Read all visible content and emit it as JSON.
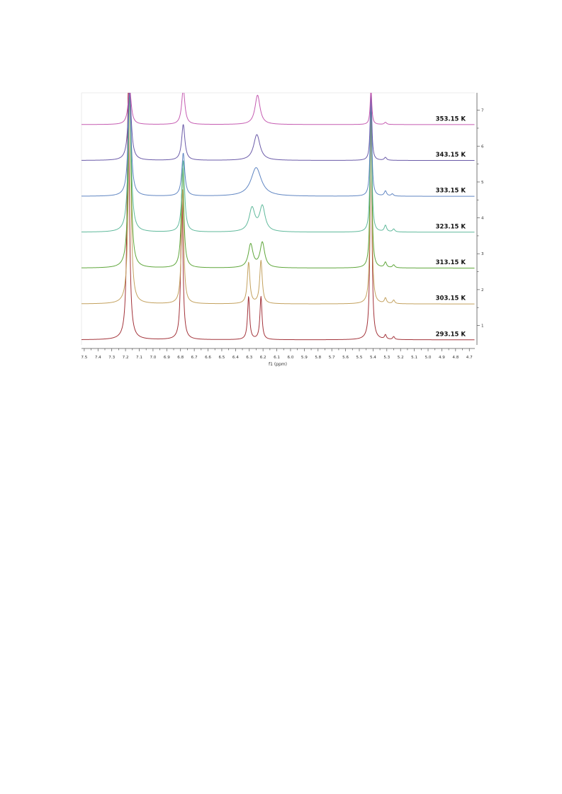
{
  "chart_data": {
    "type": "line",
    "title": "",
    "xlabel": "f1 (ppm)",
    "ylabel": "",
    "xlim": [
      7.52,
      4.66
    ],
    "x_reversed": true,
    "ylim": [
      0.4,
      7.5
    ],
    "x_ticks": [
      "7.5",
      "7.4",
      "7.3",
      "7.2",
      "7.1",
      "7.0",
      "6.9",
      "6.8",
      "6.7",
      "6.6",
      "6.5",
      "6.4",
      "6.3",
      "6.2",
      "6.1",
      "6.0",
      "5.9",
      "5.8",
      "5.7",
      "5.6",
      "5.5",
      "5.4",
      "5.3",
      "5.2",
      "5.1",
      "5.0",
      "4.9",
      "4.8",
      "4.7"
    ],
    "y_ticks": [
      "1",
      "2",
      "3",
      "4",
      "5",
      "6",
      "7"
    ],
    "grid": false,
    "series": [
      {
        "name": "293.15 K",
        "label": "293.15 K",
        "color": "#a3333a",
        "offset": 0.6,
        "peaks": [
          {
            "x": 7.18,
            "h": 7.0,
            "w": 0.01
          },
          {
            "x": 6.79,
            "h": 4.2,
            "w": 0.009
          },
          {
            "x": 6.305,
            "h": 1.2,
            "w": 0.009
          },
          {
            "x": 6.215,
            "h": 1.2,
            "w": 0.009
          },
          {
            "x": 5.415,
            "h": 7.0,
            "w": 0.007
          },
          {
            "x": 5.31,
            "h": 0.12,
            "w": 0.008
          },
          {
            "x": 5.25,
            "h": 0.08,
            "w": 0.008
          }
        ]
      },
      {
        "name": "303.15 K",
        "label": "303.15 K",
        "color": "#c3a15e",
        "offset": 1.6,
        "peaks": [
          {
            "x": 7.17,
            "h": 6.0,
            "w": 0.011
          },
          {
            "x": 6.785,
            "h": 3.2,
            "w": 0.01
          },
          {
            "x": 6.305,
            "h": 1.15,
            "w": 0.011
          },
          {
            "x": 6.215,
            "h": 1.2,
            "w": 0.011
          },
          {
            "x": 5.415,
            "h": 6.0,
            "w": 0.007
          },
          {
            "x": 5.31,
            "h": 0.15,
            "w": 0.009
          },
          {
            "x": 5.25,
            "h": 0.1,
            "w": 0.009
          }
        ]
      },
      {
        "name": "313.15 K",
        "label": "313.15 K",
        "color": "#5ea63a",
        "offset": 2.6,
        "peaks": [
          {
            "x": 7.17,
            "h": 5.0,
            "w": 0.012
          },
          {
            "x": 6.785,
            "h": 2.8,
            "w": 0.011
          },
          {
            "x": 6.29,
            "h": 0.65,
            "w": 0.02
          },
          {
            "x": 6.205,
            "h": 0.7,
            "w": 0.02
          },
          {
            "x": 5.415,
            "h": 5.0,
            "w": 0.007
          },
          {
            "x": 5.31,
            "h": 0.15,
            "w": 0.01
          },
          {
            "x": 5.25,
            "h": 0.08,
            "w": 0.01
          }
        ]
      },
      {
        "name": "323.15 K",
        "label": "323.15 K",
        "color": "#5fb99b",
        "offset": 3.6,
        "peaks": [
          {
            "x": 7.17,
            "h": 4.0,
            "w": 0.013
          },
          {
            "x": 6.78,
            "h": 2.0,
            "w": 0.012
          },
          {
            "x": 6.28,
            "h": 0.65,
            "w": 0.025
          },
          {
            "x": 6.205,
            "h": 0.7,
            "w": 0.024
          },
          {
            "x": 5.415,
            "h": 4.0,
            "w": 0.007
          },
          {
            "x": 5.31,
            "h": 0.18,
            "w": 0.01
          },
          {
            "x": 5.25,
            "h": 0.08,
            "w": 0.01
          }
        ]
      },
      {
        "name": "333.15 K",
        "label": "333.15 K",
        "color": "#5f85c2",
        "offset": 4.6,
        "peaks": [
          {
            "x": 7.17,
            "h": 3.0,
            "w": 0.013
          },
          {
            "x": 6.78,
            "h": 1.2,
            "w": 0.013
          },
          {
            "x": 6.25,
            "h": 0.8,
            "w": 0.045
          },
          {
            "x": 5.415,
            "h": 3.0,
            "w": 0.007
          },
          {
            "x": 5.31,
            "h": 0.14,
            "w": 0.01
          },
          {
            "x": 5.26,
            "h": 0.06,
            "w": 0.01
          }
        ]
      },
      {
        "name": "343.15 K",
        "label": "343.15 K",
        "color": "#6a5aa8",
        "offset": 5.6,
        "peaks": [
          {
            "x": 7.17,
            "h": 2.0,
            "w": 0.014
          },
          {
            "x": 6.78,
            "h": 1.0,
            "w": 0.014
          },
          {
            "x": 6.245,
            "h": 0.72,
            "w": 0.028
          },
          {
            "x": 5.415,
            "h": 2.0,
            "w": 0.007
          },
          {
            "x": 5.31,
            "h": 0.08,
            "w": 0.01
          }
        ]
      },
      {
        "name": "353.15 K",
        "label": "353.15 K",
        "color": "#c55bb1",
        "offset": 6.6,
        "peaks": [
          {
            "x": 7.17,
            "h": 1.0,
            "w": 0.014
          },
          {
            "x": 6.78,
            "h": 1.0,
            "w": 0.014
          },
          {
            "x": 6.24,
            "h": 0.82,
            "w": 0.022
          },
          {
            "x": 5.415,
            "h": 1.0,
            "w": 0.007
          },
          {
            "x": 5.31,
            "h": 0.06,
            "w": 0.01
          }
        ]
      }
    ]
  }
}
